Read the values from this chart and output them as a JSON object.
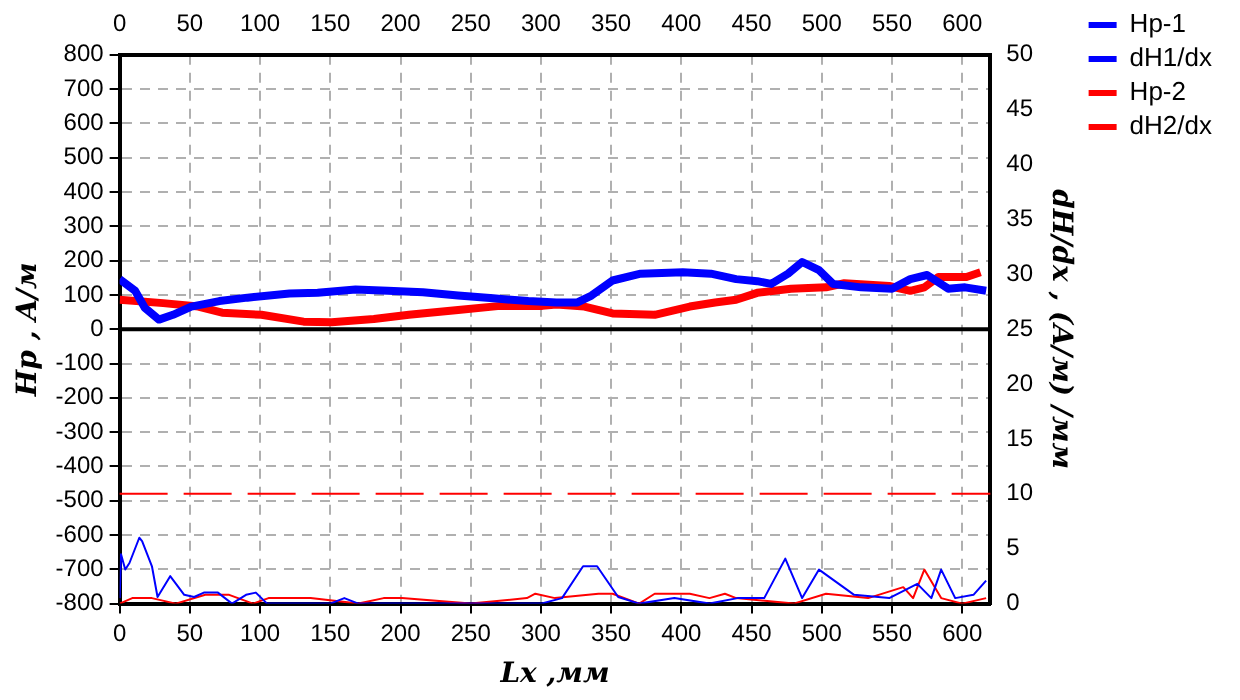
{
  "chart_data": {
    "type": "line",
    "xlabel": "Lx ,мм",
    "ylabel": "Hp , A/м",
    "y2label": "dH/dx , (A/м) /мм",
    "xlim": [
      0,
      620
    ],
    "xticks": [
      0,
      50,
      100,
      150,
      200,
      250,
      300,
      350,
      400,
      450,
      500,
      550,
      600
    ],
    "x2lim": [
      0,
      620
    ],
    "x2ticks": [
      0,
      50,
      100,
      150,
      200,
      250,
      300,
      350,
      400,
      450,
      500,
      550,
      600
    ],
    "ylim": [
      -800,
      800
    ],
    "yticks": [
      -800,
      -700,
      -600,
      -500,
      -400,
      -300,
      -200,
      -100,
      0,
      100,
      200,
      300,
      400,
      500,
      600,
      700,
      800
    ],
    "y2lim": [
      0,
      50
    ],
    "y2ticks": [
      0,
      5,
      10,
      15,
      20,
      25,
      30,
      35,
      40,
      45,
      50
    ],
    "grid": true,
    "legend": "top right",
    "marker": "none",
    "ref_lines": [
      {
        "axis": "y",
        "value": 0,
        "color": "#000000",
        "line_style": "solid"
      },
      {
        "axis": "y2",
        "value": 10,
        "color": "#ff0000",
        "line_style": "dashed"
      }
    ],
    "series": [
      {
        "name": "Hp-1",
        "color": "#0000ff",
        "x": [
          0,
          11,
          18,
          28,
          38,
          51,
          71,
          91,
          121,
          141,
          168,
          191,
          216,
          241,
          266,
          291,
          311,
          326,
          336,
          351,
          371,
          401,
          421,
          439,
          454,
          464,
          476,
          486,
          498,
          508,
          528,
          550,
          563,
          575,
          590,
          602,
          617
        ],
        "values": [
          146,
          112,
          62,
          28,
          42,
          66,
          82,
          92,
          104,
          106,
          116,
          112,
          108,
          98,
          90,
          82,
          78,
          78,
          98,
          142,
          162,
          166,
          162,
          146,
          140,
          132,
          162,
          196,
          172,
          132,
          122,
          118,
          146,
          158,
          118,
          122,
          112
        ]
      },
      {
        "name": "dH1/dx",
        "color": "#0000ff",
        "axis": "y2",
        "x": [
          0,
          1,
          4,
          7,
          14,
          16,
          23,
          27,
          36,
          46,
          53,
          60,
          70,
          80,
          90,
          97,
          105,
          150,
          160,
          170,
          300,
          315,
          330,
          340,
          355,
          370,
          395,
          420,
          440,
          459,
          474,
          486,
          498,
          523,
          548,
          568,
          578,
          585,
          595,
          608,
          617
        ],
        "values": [
          0.5,
          4.5,
          3.1,
          3.7,
          6.0,
          5.7,
          3.4,
          0.6,
          2.5,
          0.8,
          0.6,
          1.0,
          1.0,
          0,
          0.8,
          1.0,
          0,
          0,
          0.5,
          0,
          0,
          0.5,
          3.4,
          3.4,
          0.6,
          0,
          0.5,
          0,
          0.5,
          0.5,
          4.1,
          0.5,
          3.1,
          0.8,
          0.5,
          1.8,
          0.5,
          3.1,
          0.5,
          0.8,
          2.1
        ]
      },
      {
        "name": "Hp-2",
        "color": "#ff0000",
        "x": [
          0,
          31,
          56,
          73,
          101,
          131,
          151,
          181,
          206,
          241,
          271,
          301,
          311,
          331,
          351,
          381,
          406,
          424,
          439,
          454,
          478,
          503,
          516,
          548,
          563,
          573,
          583,
          603,
          613
        ],
        "values": [
          86,
          76,
          66,
          48,
          42,
          22,
          20,
          30,
          42,
          56,
          68,
          68,
          72,
          66,
          46,
          42,
          66,
          78,
          86,
          106,
          118,
          122,
          134,
          126,
          112,
          122,
          152,
          152,
          166
        ]
      },
      {
        "name": "dH2/dx",
        "color": "#ff0000",
        "axis": "y2",
        "x": [
          0,
          9,
          23,
          40,
          61,
          78,
          95,
          106,
          136,
          170,
          188,
          201,
          250,
          290,
          296,
          310,
          341,
          351,
          370,
          381,
          406,
          420,
          431,
          439,
          480,
          503,
          533,
          558,
          565,
          573,
          585,
          600,
          617
        ],
        "values": [
          0,
          0.5,
          0.5,
          0,
          0.8,
          0.8,
          0,
          0.5,
          0.5,
          0,
          0.5,
          0.5,
          0,
          0.5,
          0.9,
          0.5,
          0.9,
          0.9,
          0,
          0.9,
          0.9,
          0.5,
          0.9,
          0.5,
          0,
          0.9,
          0.5,
          1.5,
          0.5,
          3.1,
          0.5,
          0,
          0.5
        ]
      }
    ]
  }
}
